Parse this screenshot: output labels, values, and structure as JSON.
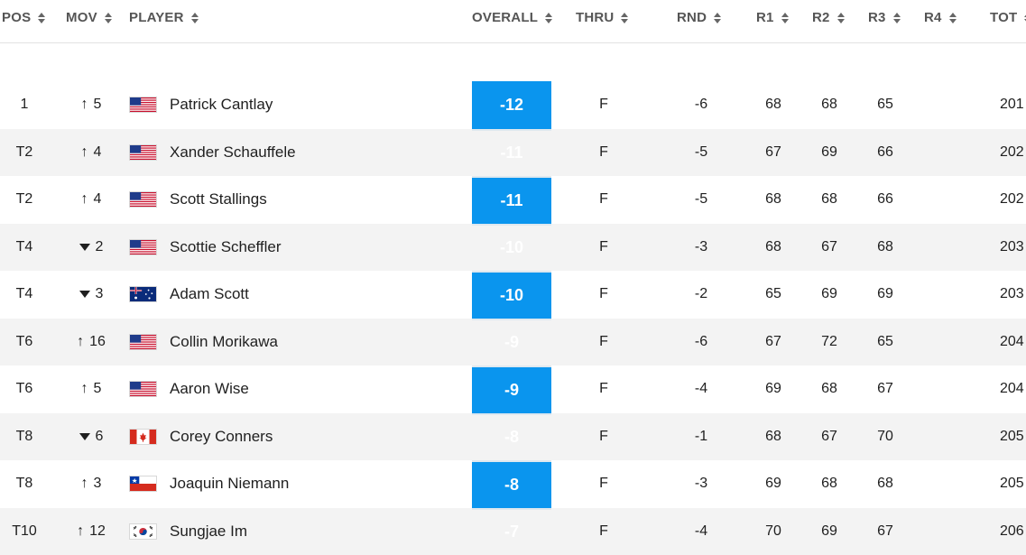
{
  "header": {
    "pos": "POS",
    "mov": "MOV",
    "player": "PLAYER",
    "overall": "OVERALL",
    "thru": "THRU",
    "rnd": "RND",
    "r1": "R1",
    "r2": "R2",
    "r3": "R3",
    "r4": "R4",
    "tot": "TOT"
  },
  "colors": {
    "overall_bg": "#0a95ee",
    "alt_row": "#f3f3f3"
  },
  "rows": [
    {
      "pos": "1",
      "dir": "up",
      "mov": "5",
      "flag": "usa",
      "name": "Patrick Cantlay",
      "overall": "-12",
      "thru": "F",
      "rnd": "-6",
      "r1": "68",
      "r2": "68",
      "r3": "65",
      "r4": "",
      "tot": "201"
    },
    {
      "pos": "T2",
      "dir": "up",
      "mov": "4",
      "flag": "usa",
      "name": "Xander Schauffele",
      "overall": "-11",
      "thru": "F",
      "rnd": "-5",
      "r1": "67",
      "r2": "69",
      "r3": "66",
      "r4": "",
      "tot": "202"
    },
    {
      "pos": "T2",
      "dir": "up",
      "mov": "4",
      "flag": "usa",
      "name": "Scott Stallings",
      "overall": "-11",
      "thru": "F",
      "rnd": "-5",
      "r1": "68",
      "r2": "68",
      "r3": "66",
      "r4": "",
      "tot": "202"
    },
    {
      "pos": "T4",
      "dir": "down",
      "mov": "2",
      "flag": "usa",
      "name": "Scottie Scheffler",
      "overall": "-10",
      "thru": "F",
      "rnd": "-3",
      "r1": "68",
      "r2": "67",
      "r3": "68",
      "r4": "",
      "tot": "203"
    },
    {
      "pos": "T4",
      "dir": "down",
      "mov": "3",
      "flag": "aus",
      "name": "Adam Scott",
      "overall": "-10",
      "thru": "F",
      "rnd": "-2",
      "r1": "65",
      "r2": "69",
      "r3": "69",
      "r4": "",
      "tot": "203"
    },
    {
      "pos": "T6",
      "dir": "up",
      "mov": "16",
      "flag": "usa",
      "name": "Collin Morikawa",
      "overall": "-9",
      "thru": "F",
      "rnd": "-6",
      "r1": "67",
      "r2": "72",
      "r3": "65",
      "r4": "",
      "tot": "204"
    },
    {
      "pos": "T6",
      "dir": "up",
      "mov": "5",
      "flag": "usa",
      "name": "Aaron Wise",
      "overall": "-9",
      "thru": "F",
      "rnd": "-4",
      "r1": "69",
      "r2": "68",
      "r3": "67",
      "r4": "",
      "tot": "204"
    },
    {
      "pos": "T8",
      "dir": "down",
      "mov": "6",
      "flag": "can",
      "name": "Corey Conners",
      "overall": "-8",
      "thru": "F",
      "rnd": "-1",
      "r1": "68",
      "r2": "67",
      "r3": "70",
      "r4": "",
      "tot": "205"
    },
    {
      "pos": "T8",
      "dir": "up",
      "mov": "3",
      "flag": "chi",
      "name": "Joaquin Niemann",
      "overall": "-8",
      "thru": "F",
      "rnd": "-3",
      "r1": "69",
      "r2": "68",
      "r3": "68",
      "r4": "",
      "tot": "205"
    },
    {
      "pos": "T10",
      "dir": "up",
      "mov": "12",
      "flag": "kor",
      "name": "Sungjae Im",
      "overall": "-7",
      "thru": "F",
      "rnd": "-4",
      "r1": "70",
      "r2": "69",
      "r3": "67",
      "r4": "",
      "tot": "206"
    }
  ]
}
